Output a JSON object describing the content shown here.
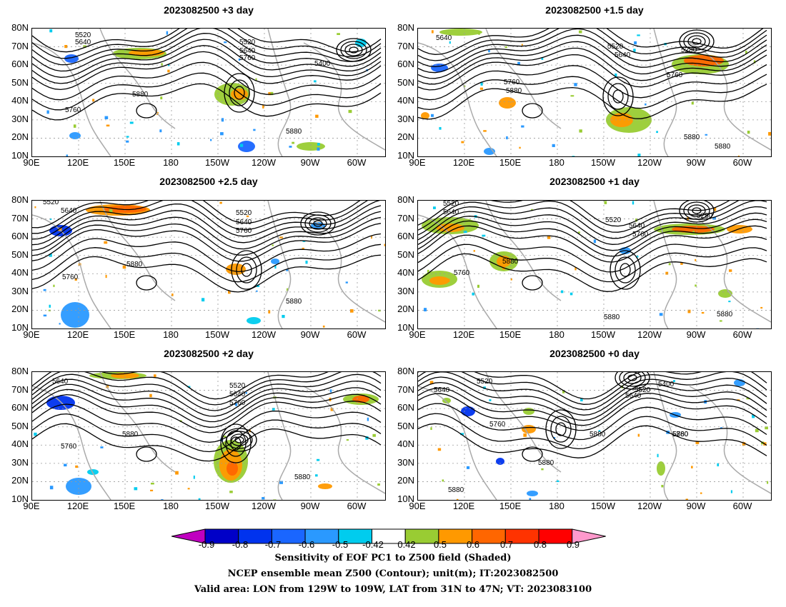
{
  "panels": [
    {
      "title": "2023082500 +3 day"
    },
    {
      "title": "2023082500 +1.5 day"
    },
    {
      "title": "2023082500 +2.5 day"
    },
    {
      "title": "2023082500 +1 day"
    },
    {
      "title": "2023082500 +2 day"
    },
    {
      "title": "2023082500 +0 day"
    }
  ],
  "lat_labels": [
    "80N",
    "70N",
    "60N",
    "50N",
    "40N",
    "30N",
    "20N",
    "10N"
  ],
  "lon_labels": [
    "90E",
    "120E",
    "150E",
    "180",
    "150W",
    "120W",
    "90W",
    "60W"
  ],
  "contour_labels": [
    "5520",
    "5640",
    "5760",
    "5880",
    "5400",
    "5280"
  ],
  "colorbar": {
    "ticks": [
      "-0.9",
      "-0.8",
      "-0.7",
      "-0.6",
      "-0.5",
      "-0.42",
      "0.42",
      "0.5",
      "0.6",
      "0.7",
      "0.8",
      "0.9"
    ],
    "colors": [
      "#c000c0",
      "#0000c8",
      "#0033ee",
      "#1a66ff",
      "#2a99ff",
      "#00ccee",
      "#ffffff",
      "#99cc33",
      "#ff9900",
      "#ff6600",
      "#ff3300",
      "#ff0000",
      "#ff99cc"
    ]
  },
  "captions": [
    "Sensitivity of EOF PC1 to Z500 field (Shaded)",
    "NCEP ensemble mean Z500 (Contour); unit(m); IT:2023082500",
    "Valid area: LON from 129W to 109W, LAT from 31N to 47N; VT: 2023083100"
  ]
}
